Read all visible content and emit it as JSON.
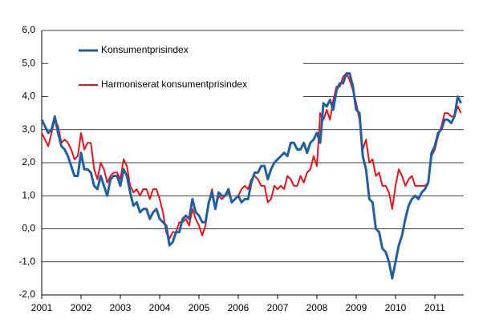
{
  "chart_data": {
    "type": "line",
    "categories": [
      "2001",
      null,
      null,
      null,
      null,
      null,
      null,
      null,
      null,
      null,
      null,
      null,
      "2002",
      null,
      null,
      null,
      null,
      null,
      null,
      null,
      null,
      null,
      null,
      null,
      "2003",
      null,
      null,
      null,
      null,
      null,
      null,
      null,
      null,
      null,
      null,
      null,
      "2004",
      null,
      null,
      null,
      null,
      null,
      null,
      null,
      null,
      null,
      null,
      null,
      "2005",
      null,
      null,
      null,
      null,
      null,
      null,
      null,
      null,
      null,
      null,
      null,
      "2006",
      null,
      null,
      null,
      null,
      null,
      null,
      null,
      null,
      null,
      null,
      null,
      "2007",
      null,
      null,
      null,
      null,
      null,
      null,
      null,
      null,
      null,
      null,
      null,
      "2008",
      null,
      null,
      null,
      null,
      null,
      null,
      null,
      null,
      null,
      null,
      null,
      "2009",
      null,
      null,
      null,
      null,
      null,
      null,
      null,
      null,
      null,
      null,
      null,
      "2010",
      null,
      null,
      null,
      null,
      null,
      null,
      null,
      null,
      null,
      null,
      null,
      "2011",
      null,
      null,
      null,
      null,
      null,
      null,
      null,
      null
    ],
    "series": [
      {
        "name": "Konsumentprisindex",
        "color": "#1f5fa6",
        "values": [
          3.3,
          3.1,
          2.9,
          3.0,
          3.4,
          2.9,
          2.5,
          2.4,
          2.2,
          1.9,
          1.6,
          1.6,
          2.3,
          1.8,
          1.8,
          1.7,
          1.3,
          1.2,
          1.6,
          1.3,
          1.0,
          1.5,
          1.6,
          1.6,
          1.3,
          1.8,
          1.6,
          1.1,
          0.7,
          0.8,
          0.5,
          0.6,
          0.6,
          0.3,
          0.5,
          0.6,
          0.3,
          0.2,
          0.1,
          -0.5,
          -0.4,
          -0.1,
          -0.1,
          0.3,
          0.4,
          0.3,
          0.9,
          0.5,
          0.4,
          0.2,
          0.2,
          0.8,
          1.1,
          0.6,
          1.1,
          1.0,
          1.0,
          1.2,
          0.8,
          0.9,
          1.0,
          0.8,
          0.9,
          0.9,
          1.4,
          1.7,
          1.7,
          1.9,
          1.9,
          1.5,
          1.8,
          2.0,
          2.1,
          2.2,
          2.3,
          2.2,
          2.6,
          2.6,
          2.4,
          2.4,
          2.6,
          2.3,
          2.6,
          2.7,
          2.9,
          2.6,
          3.8,
          3.7,
          3.9,
          3.6,
          4.2,
          4.4,
          4.4,
          4.7,
          4.7,
          4.3,
          3.6,
          3.5,
          2.2,
          1.8,
          0.9,
          0.8,
          0.0,
          -0.1,
          -0.6,
          -0.7,
          -1.0,
          -1.5,
          -1.0,
          -0.5,
          -0.2,
          0.3,
          0.7,
          0.9,
          1.0,
          0.9,
          1.1,
          1.2,
          1.4,
          2.3,
          2.5,
          2.9,
          3.0,
          3.3,
          3.3,
          3.2,
          3.4,
          4.0,
          3.8
        ]
      },
      {
        "name": "Harmoniserat konsumentprisindex",
        "color": "#e8141b",
        "values": [
          2.9,
          2.7,
          2.5,
          2.9,
          3.3,
          3.1,
          2.6,
          2.7,
          2.6,
          2.4,
          2.1,
          2.2,
          2.9,
          2.4,
          2.6,
          2.6,
          1.8,
          1.5,
          2.0,
          1.8,
          1.4,
          1.6,
          1.7,
          1.7,
          1.5,
          2.1,
          1.9,
          1.3,
          1.1,
          1.2,
          1.0,
          1.2,
          1.2,
          0.9,
          1.2,
          1.2,
          0.9,
          0.5,
          -0.1,
          -0.3,
          -0.1,
          -0.1,
          0.2,
          0.2,
          0.3,
          0.1,
          0.6,
          0.3,
          0.1,
          -0.2,
          0.1,
          0.8,
          1.2,
          0.6,
          1.0,
          0.9,
          1.0,
          1.1,
          0.8,
          0.9,
          1.0,
          1.2,
          1.3,
          1.2,
          1.5,
          1.6,
          1.5,
          1.3,
          1.3,
          0.8,
          0.9,
          1.3,
          1.2,
          1.3,
          1.2,
          1.6,
          1.5,
          1.3,
          1.3,
          1.6,
          1.4,
          1.7,
          1.8,
          2.2,
          1.9,
          3.5,
          3.3,
          3.6,
          3.3,
          3.9,
          4.3,
          4.3,
          4.6,
          4.7,
          4.5,
          4.2,
          3.8,
          3.3,
          2.4,
          2.7,
          2.0,
          2.1,
          1.6,
          1.7,
          1.3,
          1.3,
          1.1,
          0.6,
          1.3,
          1.8,
          1.6,
          1.3,
          1.5,
          1.6,
          1.3,
          1.3,
          1.3,
          1.3,
          1.4,
          2.2,
          2.4,
          2.8,
          3.1,
          3.5,
          3.5,
          3.4,
          3.4,
          3.7,
          3.5
        ]
      }
    ],
    "ylim": [
      -2,
      6
    ],
    "yticks": [
      {
        "value": -2,
        "label": "-2,0"
      },
      {
        "value": -1,
        "label": "-1,0"
      },
      {
        "value": 0,
        "label": "0,0"
      },
      {
        "value": 1,
        "label": "1,0"
      },
      {
        "value": 2,
        "label": "2,0"
      },
      {
        "value": 3,
        "label": "3,0"
      },
      {
        "value": 4,
        "label": "4,0"
      },
      {
        "value": 5,
        "label": "5,0"
      },
      {
        "value": 6,
        "label": "6,0"
      }
    ],
    "grid": true
  }
}
